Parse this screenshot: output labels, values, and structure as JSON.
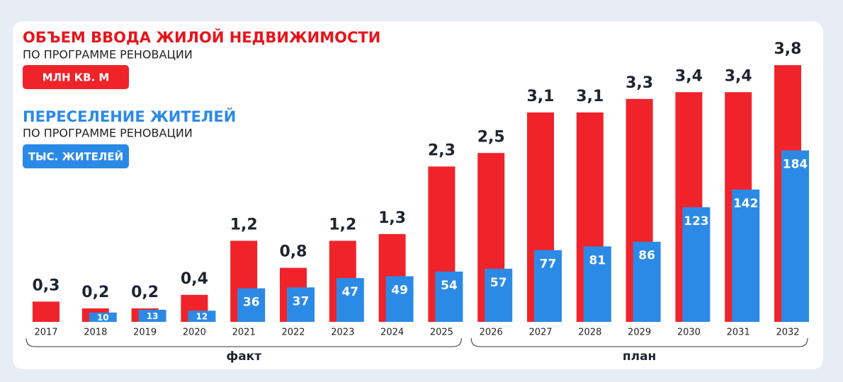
{
  "chart_data": {
    "type": "bar",
    "categories": [
      "2017",
      "2018",
      "2019",
      "2020",
      "2021",
      "2022",
      "2023",
      "2024",
      "2025",
      "2026",
      "2027",
      "2028",
      "2029",
      "2030",
      "2031",
      "2032"
    ],
    "series": [
      {
        "name": "МЛН КВ. М",
        "title": "ОБЪЕМ ВВОДА ЖИЛОЙ НЕДВИЖИМОСТИ",
        "subtitle": "ПО ПРОГРАММЕ РЕНОВАЦИИ",
        "color": "#f0232a",
        "values": [
          0.3,
          0.2,
          0.2,
          0.4,
          1.2,
          0.8,
          1.2,
          1.3,
          2.3,
          2.5,
          3.1,
          3.1,
          3.3,
          3.4,
          3.4,
          3.8
        ],
        "value_labels": [
          "0,3",
          "0,2",
          "0,2",
          "0,4",
          "1,2",
          "0,8",
          "1,2",
          "1,3",
          "2,3",
          "2,5",
          "3,1",
          "3,1",
          "3,3",
          "3,4",
          "3,4",
          "3,8"
        ]
      },
      {
        "name": "ТЫС. ЖИТЕЛЕЙ",
        "title": "ПЕРЕСЕЛЕНИЕ ЖИТЕЛЕЙ",
        "subtitle": "ПО ПРОГРАММЕ РЕНОВАЦИИ",
        "color": "#2b8ae6",
        "axis": "y2",
        "values": [
          null,
          10,
          13,
          12,
          36,
          37,
          47,
          49,
          54,
          57,
          77,
          81,
          86,
          123,
          142,
          184
        ]
      }
    ],
    "ylim": [
      0,
      4
    ],
    "y2lim": [
      0,
      290
    ],
    "groups": [
      {
        "label": "факт",
        "from": "2017",
        "to": "2025"
      },
      {
        "label": "план",
        "from": "2026",
        "to": "2032"
      }
    ]
  }
}
